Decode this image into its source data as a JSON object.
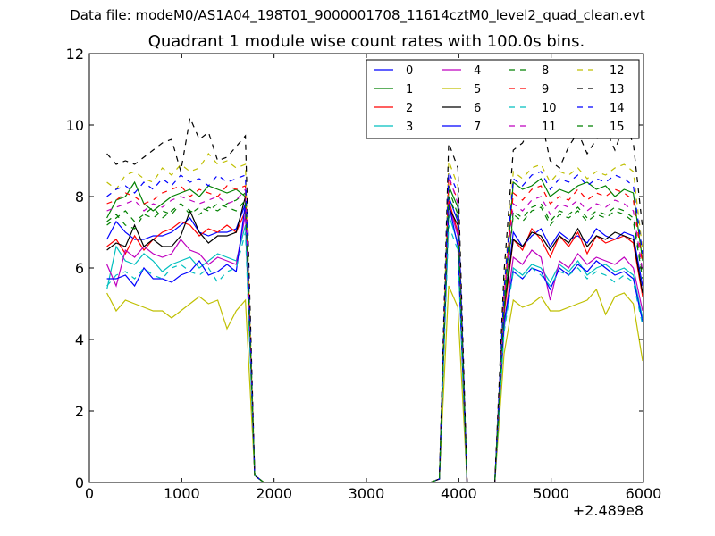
{
  "suptitle": "Data file: modeM0/AS1A04_198T01_9000001708_11614cztM0_level2_quad_clean.evt",
  "chart_data": {
    "type": "line",
    "title": "Quadrant 1 module wise count rates with 100.0s bins.",
    "xlabel": "",
    "ylabel": "",
    "xlim": [
      0,
      6000
    ],
    "ylim": [
      0,
      12
    ],
    "x_offset_label": "+2.489e8",
    "x_ticks": [
      0,
      1000,
      2000,
      3000,
      4000,
      5000,
      6000
    ],
    "y_ticks": [
      0,
      2,
      4,
      6,
      8,
      10,
      12
    ],
    "x_tick_labels": [
      "0",
      "1000",
      "2000",
      "3000",
      "4000",
      "5000",
      "6000"
    ],
    "y_tick_labels": [
      "0",
      "2",
      "4",
      "6",
      "8",
      "10",
      "12"
    ],
    "grid": false,
    "legend_position": "top-right",
    "legend_columns": 4,
    "x": [
      190,
      290,
      390,
      490,
      590,
      690,
      790,
      890,
      990,
      1090,
      1190,
      1290,
      1390,
      1490,
      1590,
      1690,
      1790,
      1890,
      1990,
      2090,
      2190,
      2290,
      2390,
      2490,
      2590,
      2690,
      2790,
      2890,
      2990,
      3090,
      3190,
      3290,
      3390,
      3490,
      3590,
      3690,
      3790,
      3890,
      3990,
      4090,
      4190,
      4290,
      4390,
      4490,
      4590,
      4690,
      4790,
      4890,
      4990,
      5090,
      5190,
      5290,
      5390,
      5490,
      5590,
      5690,
      5790,
      5890,
      5990
    ],
    "series": [
      {
        "name": "0",
        "color": "#0000ff",
        "dash": "solid",
        "values": [
          6.8,
          7.3,
          7.0,
          6.8,
          6.8,
          6.9,
          6.9,
          7.0,
          7.2,
          7.4,
          7.0,
          6.9,
          7.0,
          7.0,
          7.1,
          7.8,
          0.2,
          0,
          0,
          0,
          0,
          0,
          0,
          0,
          0,
          0,
          0,
          0,
          0,
          0,
          0,
          0,
          0,
          0,
          0,
          0,
          0.1,
          8.0,
          7.3,
          0,
          0,
          0,
          0,
          4.8,
          7.0,
          6.6,
          6.9,
          7.1,
          6.6,
          7.0,
          6.8,
          6.9,
          6.7,
          7.1,
          6.9,
          6.8,
          7.0,
          6.9,
          5.5
        ]
      },
      {
        "name": "1",
        "color": "#008000",
        "dash": "solid",
        "values": [
          7.4,
          7.9,
          8.0,
          8.4,
          7.8,
          7.6,
          7.8,
          8.0,
          8.1,
          8.2,
          8.0,
          8.3,
          8.2,
          8.1,
          8.2,
          8.0,
          0.2,
          0,
          0,
          0,
          0,
          0,
          0,
          0,
          0,
          0,
          0,
          0,
          0,
          0,
          0,
          0,
          0,
          0,
          0,
          0,
          0.1,
          8.3,
          7.7,
          0,
          0,
          0,
          0,
          5.0,
          8.4,
          8.2,
          8.3,
          8.5,
          8.0,
          8.2,
          8.1,
          8.3,
          8.4,
          8.2,
          8.3,
          8.0,
          8.2,
          8.1,
          6.2
        ]
      },
      {
        "name": "2",
        "color": "#ff0000",
        "dash": "solid",
        "values": [
          6.6,
          6.8,
          6.4,
          6.9,
          6.5,
          6.8,
          7.0,
          7.1,
          7.3,
          7.2,
          6.9,
          7.1,
          7.0,
          7.2,
          7.0,
          7.6,
          0.2,
          0,
          0,
          0,
          0,
          0,
          0,
          0,
          0,
          0,
          0,
          0,
          0,
          0,
          0,
          0,
          0,
          0,
          0,
          0,
          0.1,
          7.9,
          7.0,
          0,
          0,
          0,
          0,
          4.7,
          6.8,
          6.5,
          7.1,
          6.8,
          6.3,
          6.9,
          6.6,
          7.0,
          6.4,
          6.9,
          6.7,
          6.8,
          6.9,
          6.7,
          5.2
        ]
      },
      {
        "name": "3",
        "color": "#00bfbf",
        "dash": "solid",
        "values": [
          5.4,
          6.6,
          6.2,
          6.1,
          6.4,
          6.2,
          5.9,
          6.1,
          6.2,
          6.3,
          6.0,
          6.2,
          6.4,
          6.3,
          6.2,
          7.2,
          0.2,
          0,
          0,
          0,
          0,
          0,
          0,
          0,
          0,
          0,
          0,
          0,
          0,
          0,
          0,
          0,
          0,
          0,
          0,
          0,
          0.1,
          7.5,
          6.7,
          0,
          0,
          0,
          0,
          4.3,
          6.0,
          5.8,
          6.1,
          6.0,
          5.6,
          6.1,
          5.9,
          6.2,
          5.8,
          6.0,
          6.1,
          5.9,
          6.0,
          5.8,
          4.6
        ]
      },
      {
        "name": "4",
        "color": "#bf00bf",
        "dash": "solid",
        "values": [
          6.1,
          5.5,
          6.5,
          6.3,
          6.6,
          6.4,
          6.3,
          6.4,
          6.8,
          6.5,
          6.4,
          6.1,
          6.3,
          6.2,
          6.1,
          7.5,
          0.2,
          0,
          0,
          0,
          0,
          0,
          0,
          0,
          0,
          0,
          0,
          0,
          0,
          0,
          0,
          0,
          0,
          0,
          0,
          0,
          0.1,
          7.8,
          6.9,
          0,
          0,
          0,
          0,
          4.4,
          6.3,
          6.1,
          6.5,
          6.3,
          5.1,
          6.2,
          6.0,
          6.4,
          6.1,
          6.3,
          6.2,
          6.1,
          6.3,
          6.0,
          4.8
        ]
      },
      {
        "name": "5",
        "color": "#bfbf00",
        "dash": "solid",
        "values": [
          5.3,
          4.8,
          5.1,
          5.0,
          4.9,
          4.8,
          4.8,
          4.6,
          4.8,
          5.0,
          5.2,
          5.0,
          5.1,
          4.3,
          4.8,
          5.1,
          0.2,
          0,
          0,
          0,
          0,
          0,
          0,
          0,
          0,
          0,
          0,
          0,
          0,
          0,
          0,
          0,
          0,
          0,
          0,
          0,
          0.1,
          5.5,
          4.9,
          0,
          0,
          0,
          0,
          3.6,
          5.1,
          4.9,
          5.0,
          5.2,
          4.8,
          4.8,
          4.9,
          5.0,
          5.1,
          5.4,
          4.7,
          5.2,
          5.3,
          5.0,
          3.4
        ]
      },
      {
        "name": "6",
        "color": "#000000",
        "dash": "solid",
        "values": [
          6.5,
          6.7,
          6.6,
          7.2,
          6.6,
          6.8,
          6.6,
          6.6,
          6.9,
          7.6,
          7.0,
          6.7,
          6.9,
          6.9,
          7.0,
          8.0,
          0.2,
          0,
          0,
          0,
          0,
          0,
          0,
          0,
          0,
          0,
          0,
          0,
          0,
          0,
          0,
          0,
          0,
          0,
          0,
          0,
          0.1,
          7.7,
          7.2,
          0,
          0,
          0,
          0,
          4.9,
          6.8,
          6.6,
          7.0,
          6.9,
          6.5,
          6.9,
          6.7,
          7.1,
          6.6,
          6.9,
          6.8,
          7.0,
          6.9,
          6.8,
          5.3
        ]
      },
      {
        "name": "7",
        "color": "#0000ff",
        "dash": "solid",
        "values": [
          5.7,
          5.7,
          5.8,
          5.5,
          6.0,
          5.7,
          5.7,
          5.6,
          5.8,
          5.9,
          6.2,
          5.8,
          5.9,
          6.1,
          5.9,
          7.8,
          0.2,
          0,
          0,
          0,
          0,
          0,
          0,
          0,
          0,
          0,
          0,
          0,
          0,
          0,
          0,
          0,
          0,
          0,
          0,
          0,
          0.1,
          7.8,
          6.6,
          0,
          0,
          0,
          0,
          4.5,
          5.9,
          5.7,
          6.0,
          5.9,
          5.4,
          6.0,
          5.8,
          6.1,
          5.9,
          6.2,
          6.0,
          5.8,
          5.9,
          5.7,
          4.5
        ]
      },
      {
        "name": "8",
        "color": "#008000",
        "dash": "dashed",
        "values": [
          7.3,
          7.5,
          7.2,
          7.1,
          7.5,
          7.4,
          7.6,
          7.5,
          7.8,
          7.6,
          7.5,
          7.7,
          7.6,
          7.8,
          7.9,
          8.1,
          0.2,
          0,
          0,
          0,
          0,
          0,
          0,
          0,
          0,
          0,
          0,
          0,
          0,
          0,
          0,
          0,
          0,
          0,
          0,
          0,
          0.1,
          8.2,
          7.5,
          0,
          0,
          0,
          0,
          4.9,
          7.6,
          7.4,
          7.7,
          7.8,
          7.3,
          7.6,
          7.5,
          7.7,
          7.4,
          7.6,
          7.5,
          7.7,
          7.6,
          7.4,
          5.8
        ]
      },
      {
        "name": "9",
        "color": "#ff0000",
        "dash": "dashed",
        "values": [
          7.8,
          7.9,
          8.1,
          8.0,
          7.8,
          7.9,
          8.1,
          8.2,
          8.3,
          8.0,
          8.2,
          8.1,
          8.0,
          8.3,
          8.2,
          8.3,
          0.2,
          0,
          0,
          0,
          0,
          0,
          0,
          0,
          0,
          0,
          0,
          0,
          0,
          0,
          0,
          0,
          0,
          0,
          0,
          0,
          0.1,
          8.5,
          7.9,
          0,
          0,
          0,
          0,
          5.2,
          8.1,
          7.9,
          8.2,
          8.3,
          7.8,
          8.0,
          7.9,
          8.2,
          7.9,
          8.1,
          8.0,
          8.2,
          8.1,
          7.9,
          6.1
        ]
      },
      {
        "name": "10",
        "color": "#00bfbf",
        "dash": "dashed",
        "values": [
          5.5,
          5.8,
          5.9,
          5.7,
          6.0,
          5.8,
          5.7,
          6.0,
          6.1,
          5.9,
          5.8,
          6.0,
          5.6,
          5.9,
          6.0,
          7.0,
          0.2,
          0,
          0,
          0,
          0,
          0,
          0,
          0,
          0,
          0,
          0,
          0,
          0,
          0,
          0,
          0,
          0,
          0,
          0,
          0,
          0.1,
          7.2,
          6.5,
          0,
          0,
          0,
          0,
          4.2,
          5.9,
          5.7,
          6.0,
          5.8,
          5.5,
          5.9,
          5.8,
          6.0,
          5.7,
          5.9,
          5.8,
          5.6,
          5.8,
          5.6,
          4.4
        ]
      },
      {
        "name": "11",
        "color": "#bf00bf",
        "dash": "dashed",
        "values": [
          7.6,
          7.7,
          7.8,
          7.9,
          7.6,
          7.8,
          7.7,
          7.9,
          8.0,
          7.9,
          7.8,
          7.9,
          8.0,
          7.8,
          7.9,
          8.2,
          0.2,
          0,
          0,
          0,
          0,
          0,
          0,
          0,
          0,
          0,
          0,
          0,
          0,
          0,
          0,
          0,
          0,
          0,
          0,
          0,
          0.1,
          8.6,
          7.8,
          0,
          0,
          0,
          0,
          5.1,
          7.8,
          7.6,
          7.9,
          8.0,
          7.5,
          7.8,
          7.7,
          7.9,
          7.6,
          7.8,
          7.7,
          7.9,
          7.8,
          7.6,
          5.9
        ]
      },
      {
        "name": "12",
        "color": "#bfbf00",
        "dash": "dashed",
        "values": [
          8.4,
          8.2,
          8.6,
          8.7,
          8.5,
          8.4,
          8.8,
          8.6,
          8.9,
          8.7,
          8.8,
          9.2,
          8.9,
          9.0,
          8.8,
          8.9,
          0.2,
          0,
          0,
          0,
          0,
          0,
          0,
          0,
          0,
          0,
          0,
          0,
          0,
          0,
          0,
          0,
          0,
          0,
          0,
          0,
          0.1,
          9.0,
          8.3,
          0,
          0,
          0,
          0,
          5.5,
          8.7,
          8.5,
          8.8,
          8.9,
          8.4,
          8.7,
          8.6,
          8.8,
          8.5,
          8.7,
          8.6,
          8.8,
          8.9,
          8.7,
          6.5
        ]
      },
      {
        "name": "13",
        "color": "#000000",
        "dash": "dashed",
        "values": [
          9.2,
          8.9,
          9.0,
          8.9,
          9.1,
          9.3,
          9.5,
          9.6,
          8.7,
          10.2,
          9.6,
          9.8,
          9.0,
          9.1,
          9.4,
          9.7,
          0.2,
          0,
          0,
          0,
          0,
          0,
          0,
          0,
          0,
          0,
          0,
          0,
          0,
          0,
          0,
          0,
          0,
          0,
          0,
          0,
          0.1,
          9.5,
          8.8,
          0,
          0,
          0,
          0,
          5.9,
          9.3,
          9.5,
          10.0,
          10.2,
          9.0,
          8.8,
          9.4,
          9.8,
          9.2,
          9.6,
          9.9,
          9.3,
          10.0,
          9.5,
          7.1
        ]
      },
      {
        "name": "14",
        "color": "#0000ff",
        "dash": "dashed",
        "values": [
          8.0,
          8.2,
          8.3,
          8.1,
          8.4,
          8.2,
          8.5,
          8.3,
          8.6,
          8.4,
          8.5,
          8.3,
          8.6,
          8.4,
          8.5,
          8.6,
          0.2,
          0,
          0,
          0,
          0,
          0,
          0,
          0,
          0,
          0,
          0,
          0,
          0,
          0,
          0,
          0,
          0,
          0,
          0,
          0,
          0.1,
          8.7,
          8.1,
          0,
          0,
          0,
          0,
          5.4,
          8.5,
          8.3,
          8.6,
          8.7,
          8.2,
          8.5,
          8.4,
          8.6,
          8.3,
          8.5,
          8.4,
          8.6,
          8.5,
          8.3,
          6.4
        ]
      },
      {
        "name": "15",
        "color": "#008000",
        "dash": "dashed",
        "values": [
          7.2,
          7.4,
          7.6,
          7.3,
          7.5,
          7.7,
          7.4,
          7.6,
          7.8,
          7.5,
          7.7,
          7.6,
          7.8,
          7.7,
          7.6,
          7.9,
          0.2,
          0,
          0,
          0,
          0,
          0,
          0,
          0,
          0,
          0,
          0,
          0,
          0,
          0,
          0,
          0,
          0,
          0,
          0,
          0,
          0.1,
          8.0,
          7.4,
          0,
          0,
          0,
          0,
          4.8,
          7.5,
          7.3,
          7.6,
          7.7,
          7.2,
          7.5,
          7.4,
          7.6,
          7.3,
          7.5,
          7.4,
          7.6,
          7.5,
          7.3,
          5.7
        ]
      }
    ]
  }
}
